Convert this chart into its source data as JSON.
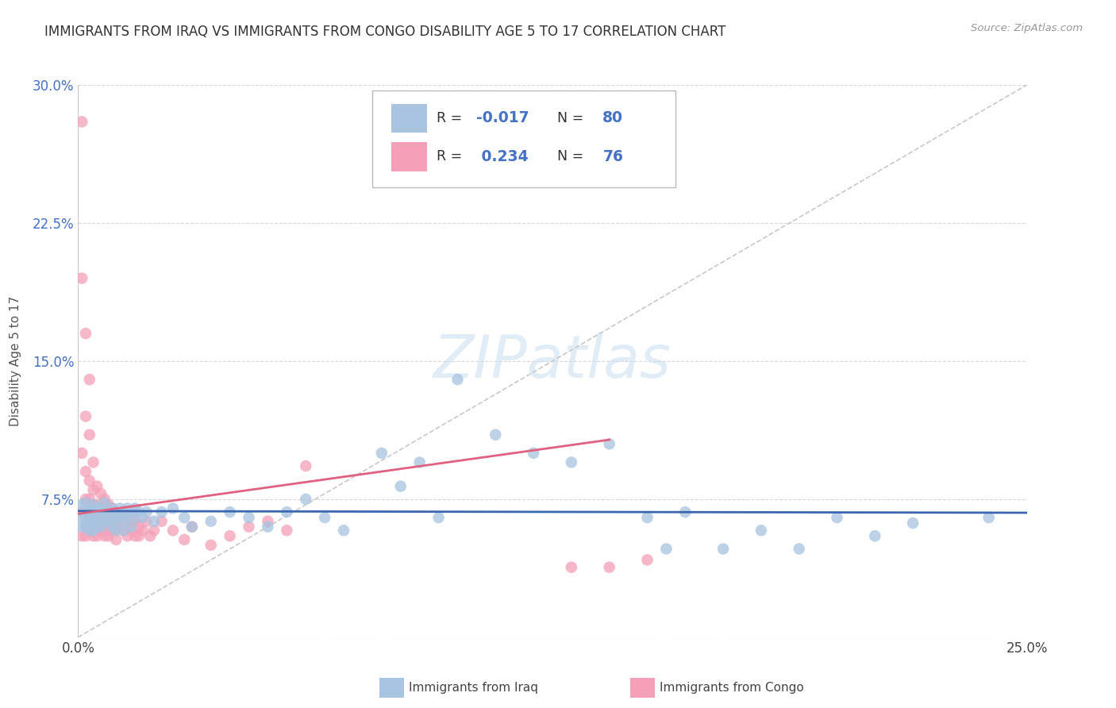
{
  "title": "IMMIGRANTS FROM IRAQ VS IMMIGRANTS FROM CONGO DISABILITY AGE 5 TO 17 CORRELATION CHART",
  "source": "Source: ZipAtlas.com",
  "ylabel": "Disability Age 5 to 17",
  "xlim": [
    0.0,
    0.25
  ],
  "ylim": [
    0.0,
    0.3
  ],
  "xticks": [
    0.0,
    0.05,
    0.1,
    0.15,
    0.2,
    0.25
  ],
  "yticks": [
    0.0,
    0.075,
    0.15,
    0.225,
    0.3
  ],
  "iraq_R": "-0.017",
  "iraq_N": "80",
  "congo_R": "0.234",
  "congo_N": "76",
  "background_color": "#ffffff",
  "grid_color": "#d8d8d8",
  "iraq_color": "#a8c4e0",
  "iraq_line_color": "#3a67b0",
  "congo_color": "#f4a0b8",
  "congo_line_color": "#e06080",
  "trend_line_color": "#c8c8c8",
  "iraq_scatter_x": [
    0.001,
    0.001,
    0.001,
    0.002,
    0.002,
    0.002,
    0.002,
    0.003,
    0.003,
    0.003,
    0.003,
    0.003,
    0.004,
    0.004,
    0.004,
    0.004,
    0.005,
    0.005,
    0.005,
    0.005,
    0.006,
    0.006,
    0.006,
    0.007,
    0.007,
    0.007,
    0.008,
    0.008,
    0.009,
    0.009,
    0.009,
    0.01,
    0.01,
    0.01,
    0.011,
    0.011,
    0.012,
    0.012,
    0.012,
    0.013,
    0.013,
    0.014,
    0.014,
    0.015,
    0.015,
    0.016,
    0.017,
    0.018,
    0.02,
    0.022,
    0.025,
    0.028,
    0.03,
    0.035,
    0.04,
    0.045,
    0.05,
    0.055,
    0.06,
    0.065,
    0.07,
    0.08,
    0.085,
    0.09,
    0.095,
    0.1,
    0.11,
    0.12,
    0.13,
    0.14,
    0.15,
    0.155,
    0.16,
    0.17,
    0.18,
    0.19,
    0.2,
    0.21,
    0.22,
    0.24
  ],
  "iraq_scatter_y": [
    0.072,
    0.065,
    0.06,
    0.068,
    0.073,
    0.065,
    0.06,
    0.07,
    0.065,
    0.068,
    0.062,
    0.058,
    0.072,
    0.068,
    0.063,
    0.058,
    0.07,
    0.065,
    0.06,
    0.068,
    0.07,
    0.065,
    0.06,
    0.068,
    0.063,
    0.073,
    0.068,
    0.063,
    0.07,
    0.065,
    0.06,
    0.068,
    0.063,
    0.058,
    0.07,
    0.065,
    0.068,
    0.063,
    0.058,
    0.07,
    0.065,
    0.068,
    0.06,
    0.065,
    0.07,
    0.068,
    0.065,
    0.068,
    0.063,
    0.068,
    0.07,
    0.065,
    0.06,
    0.063,
    0.068,
    0.065,
    0.06,
    0.068,
    0.075,
    0.065,
    0.058,
    0.1,
    0.082,
    0.095,
    0.065,
    0.14,
    0.11,
    0.1,
    0.095,
    0.105,
    0.065,
    0.048,
    0.068,
    0.048,
    0.058,
    0.048,
    0.065,
    0.055,
    0.062,
    0.065
  ],
  "congo_scatter_x": [
    0.001,
    0.001,
    0.001,
    0.001,
    0.001,
    0.002,
    0.002,
    0.002,
    0.002,
    0.002,
    0.002,
    0.002,
    0.003,
    0.003,
    0.003,
    0.003,
    0.003,
    0.003,
    0.004,
    0.004,
    0.004,
    0.004,
    0.004,
    0.005,
    0.005,
    0.005,
    0.005,
    0.005,
    0.006,
    0.006,
    0.006,
    0.006,
    0.007,
    0.007,
    0.007,
    0.007,
    0.008,
    0.008,
    0.008,
    0.008,
    0.009,
    0.009,
    0.009,
    0.01,
    0.01,
    0.01,
    0.01,
    0.011,
    0.011,
    0.012,
    0.012,
    0.013,
    0.013,
    0.014,
    0.014,
    0.015,
    0.015,
    0.016,
    0.016,
    0.017,
    0.018,
    0.019,
    0.02,
    0.022,
    0.025,
    0.028,
    0.03,
    0.035,
    0.04,
    0.045,
    0.05,
    0.055,
    0.06,
    0.13,
    0.14,
    0.15
  ],
  "congo_scatter_y": [
    0.28,
    0.195,
    0.1,
    0.068,
    0.055,
    0.165,
    0.12,
    0.09,
    0.075,
    0.068,
    0.06,
    0.055,
    0.14,
    0.11,
    0.085,
    0.075,
    0.065,
    0.058,
    0.095,
    0.08,
    0.072,
    0.063,
    0.055,
    0.082,
    0.072,
    0.063,
    0.06,
    0.055,
    0.078,
    0.07,
    0.063,
    0.058,
    0.075,
    0.068,
    0.062,
    0.055,
    0.072,
    0.065,
    0.06,
    0.055,
    0.07,
    0.063,
    0.058,
    0.068,
    0.063,
    0.058,
    0.053,
    0.065,
    0.06,
    0.065,
    0.058,
    0.063,
    0.055,
    0.063,
    0.058,
    0.063,
    0.055,
    0.06,
    0.055,
    0.058,
    0.063,
    0.055,
    0.058,
    0.063,
    0.058,
    0.053,
    0.06,
    0.05,
    0.055,
    0.06,
    0.063,
    0.058,
    0.093,
    0.038,
    0.038,
    0.042
  ]
}
